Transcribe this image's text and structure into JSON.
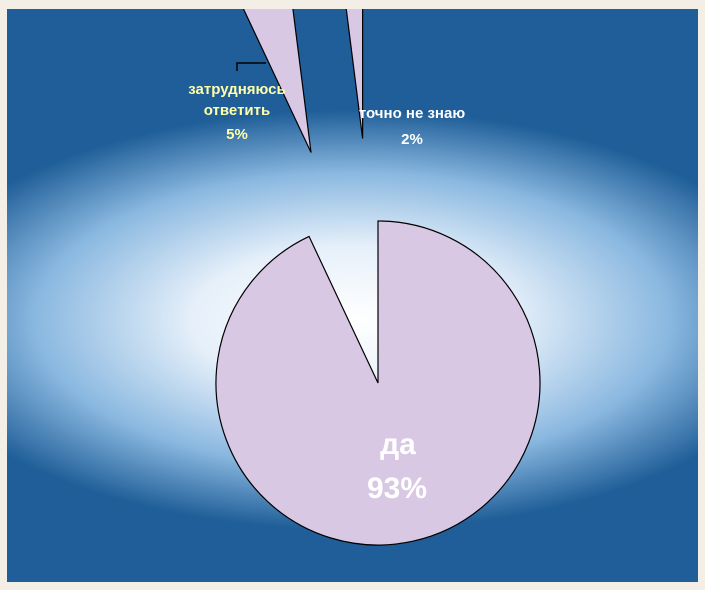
{
  "chart_data": {
    "type": "pie",
    "title": "",
    "slices": [
      {
        "label": "да",
        "value": 93,
        "value_text": "93%",
        "exploded": false
      },
      {
        "label": "затрудняюсь ответить",
        "value": 5,
        "value_text": "5%",
        "exploded": true
      },
      {
        "label": "точно не знаю",
        "value": 2,
        "value_text": "2%",
        "exploded": true
      }
    ],
    "slice_color": "#d8c8e4",
    "label_colors": {
      "small": "#ffffaa",
      "large": "#ffffff"
    },
    "background_color": "#1f5e98"
  }
}
